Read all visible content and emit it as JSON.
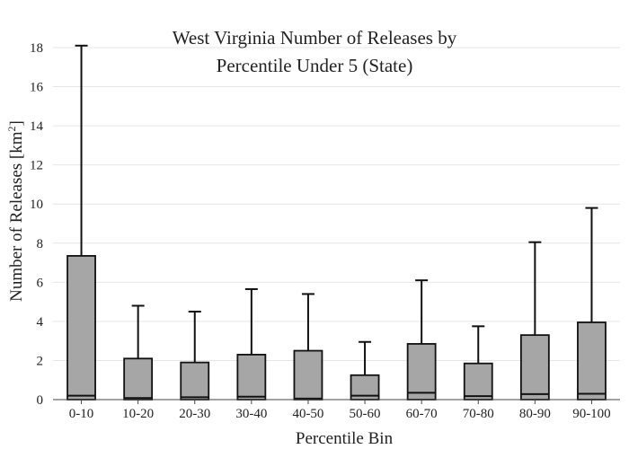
{
  "chart_data": {
    "type": "box",
    "title_lines": [
      "West Virginia Number of Releases by",
      "Percentile Under 5 (State)"
    ],
    "xlabel": "Percentile Bin",
    "ylabel": "Number of Releases  [km",
    "ylabel_sup": "2",
    "ylabel_close": "]",
    "ylim": [
      0,
      18
    ],
    "yticks": [
      0,
      2,
      4,
      6,
      8,
      10,
      12,
      14,
      16,
      18
    ],
    "grid": true,
    "box_color": "#a6a6a6",
    "categories": [
      "0-10",
      "10-20",
      "20-30",
      "30-40",
      "40-50",
      "50-60",
      "60-70",
      "70-80",
      "80-90",
      "90-100"
    ],
    "boxes": [
      {
        "min": 0,
        "q1": 0,
        "median": 0.2,
        "q3": 7.35,
        "max": 18.1
      },
      {
        "min": 0,
        "q1": 0,
        "median": 0.08,
        "q3": 2.1,
        "max": 4.8
      },
      {
        "min": 0,
        "q1": 0,
        "median": 0.12,
        "q3": 1.9,
        "max": 4.5
      },
      {
        "min": 0,
        "q1": 0,
        "median": 0.15,
        "q3": 2.3,
        "max": 5.65
      },
      {
        "min": 0,
        "q1": 0,
        "median": 0.05,
        "q3": 2.5,
        "max": 5.4
      },
      {
        "min": 0,
        "q1": 0,
        "median": 0.2,
        "q3": 1.25,
        "max": 2.95
      },
      {
        "min": 0,
        "q1": 0,
        "median": 0.35,
        "q3": 2.85,
        "max": 6.1
      },
      {
        "min": 0,
        "q1": 0,
        "median": 0.18,
        "q3": 1.85,
        "max": 3.75
      },
      {
        "min": 0,
        "q1": 0,
        "median": 0.28,
        "q3": 3.3,
        "max": 8.05
      },
      {
        "min": 0,
        "q1": 0,
        "median": 0.3,
        "q3": 3.95,
        "max": 9.8
      }
    ]
  }
}
